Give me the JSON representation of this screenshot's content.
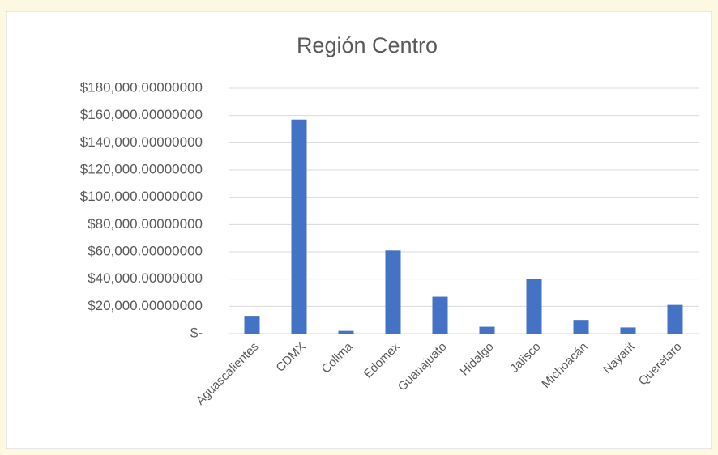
{
  "chart_data": {
    "type": "bar",
    "title": "Región Centro",
    "categories": [
      "Aguascalientes",
      "CDMX",
      "Colima",
      "Edomex",
      "Guanajuato",
      "Hidalgo",
      "Jalisco",
      "Michoacán",
      "Nayarit",
      "Queretaro"
    ],
    "values": [
      13000,
      157000,
      2000,
      61000,
      27000,
      5000,
      40000,
      10000,
      4500,
      21000
    ],
    "color": "#4472c4",
    "ylim": [
      0,
      180000
    ],
    "yticks": [
      {
        "value": 0,
        "label": "$-"
      },
      {
        "value": 20000,
        "label": "$20,000.00000000"
      },
      {
        "value": 40000,
        "label": "$40,000.00000000"
      },
      {
        "value": 60000,
        "label": "$60,000.00000000"
      },
      {
        "value": 80000,
        "label": "$80,000.00000000"
      },
      {
        "value": 100000,
        "label": "$100,000.00000000"
      },
      {
        "value": 120000,
        "label": "$120,000.00000000"
      },
      {
        "value": 140000,
        "label": "$140,000.00000000"
      },
      {
        "value": 160000,
        "label": "$160,000.00000000"
      },
      {
        "value": 180000,
        "label": "$180,000.00000000"
      }
    ],
    "grid": true
  }
}
